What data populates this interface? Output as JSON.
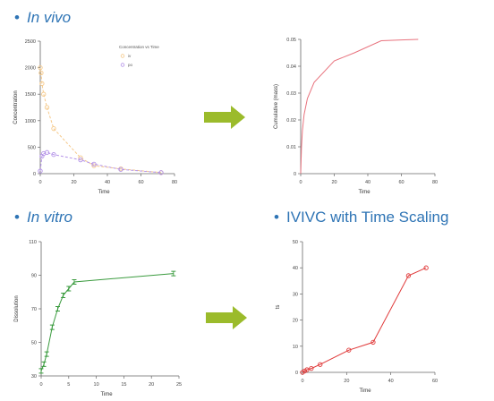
{
  "headings": {
    "in_vivo": "In vivo",
    "in_vitro": "In vitro",
    "ivivc": "IVIVC with Time Scaling"
  },
  "colors": {
    "heading": "#2e74b5",
    "arrow": "#9bbb2b",
    "iv_series": "#f5c98a",
    "po_series": "#b493e8",
    "cumulative": "#e8737e",
    "dissolution": "#3a9b3e",
    "scaling": "#e03a3a"
  },
  "chart_data": [
    {
      "id": "in-vivo-concentration",
      "type": "scatter",
      "xlabel": "Time",
      "ylabel": "Concentration",
      "xlim": [
        0,
        80
      ],
      "ylim": [
        0,
        2500
      ],
      "xticks": [
        "0",
        "20",
        "40",
        "60",
        "80"
      ],
      "yticks": [
        "0",
        "500",
        "1000",
        "1500",
        "2000",
        "2500"
      ],
      "legend_title": "Concentration vs Time",
      "legend_position": "top-right",
      "series": [
        {
          "name": "iv",
          "color": "#f5c98a",
          "x": [
            0,
            0.5,
            1,
            2,
            4,
            8,
            24,
            32,
            48,
            72
          ],
          "y": [
            2000,
            1900,
            1700,
            1500,
            1250,
            850,
            300,
            150,
            90,
            20
          ]
        },
        {
          "name": "po",
          "color": "#b493e8",
          "x": [
            0,
            1,
            2,
            4,
            8,
            24,
            32,
            48,
            72
          ],
          "y": [
            50,
            330,
            380,
            400,
            360,
            260,
            180,
            80,
            20
          ]
        }
      ]
    },
    {
      "id": "in-vivo-cumulative",
      "type": "line",
      "xlabel": "Time",
      "ylabel": "Cumulative (mass)",
      "xlim": [
        0,
        80
      ],
      "ylim": [
        0,
        0.05
      ],
      "xticks": [
        "0",
        "20",
        "40",
        "60",
        "80"
      ],
      "yticks": [
        "0",
        "0.01",
        "0.02",
        "0.03",
        "0.04",
        "0.05"
      ],
      "series": [
        {
          "name": "",
          "color": "#e8737e",
          "x": [
            0,
            0.5,
            1,
            2,
            4,
            8,
            20,
            32,
            48,
            60,
            70
          ],
          "y": [
            0,
            0.01,
            0.016,
            0.022,
            0.028,
            0.034,
            0.042,
            0.045,
            0.0495,
            0.0498,
            0.05
          ]
        }
      ]
    },
    {
      "id": "in-vitro-dissolution",
      "type": "line",
      "xlabel": "Time",
      "ylabel": "Dissolution",
      "xlim": [
        0,
        25
      ],
      "ylim": [
        30,
        110
      ],
      "xticks": [
        "0",
        "5",
        "10",
        "15",
        "20",
        "25"
      ],
      "yticks": [
        "30",
        "50",
        "70",
        "90",
        "110"
      ],
      "series": [
        {
          "name": "",
          "color": "#3a9b3e",
          "x": [
            0,
            0.5,
            1,
            2,
            3,
            4,
            5,
            6,
            24
          ],
          "y": [
            33,
            37,
            43,
            59,
            70,
            78,
            82,
            86,
            91
          ]
        }
      ]
    },
    {
      "id": "ivivc-time-scaling",
      "type": "line",
      "xlabel": "Time",
      "ylabel": "ts",
      "xlim": [
        0,
        60
      ],
      "ylim": [
        0,
        50
      ],
      "xticks": [
        "0",
        "20",
        "40",
        "60"
      ],
      "yticks": [
        "0",
        "10",
        "20",
        "30",
        "40",
        "50"
      ],
      "series": [
        {
          "name": "",
          "color": "#e03a3a",
          "x": [
            0,
            1,
            2,
            4,
            8,
            21,
            32,
            48,
            56
          ],
          "y": [
            0,
            0.5,
            1,
            1.5,
            3,
            8.5,
            11.5,
            37,
            40
          ]
        }
      ]
    }
  ]
}
